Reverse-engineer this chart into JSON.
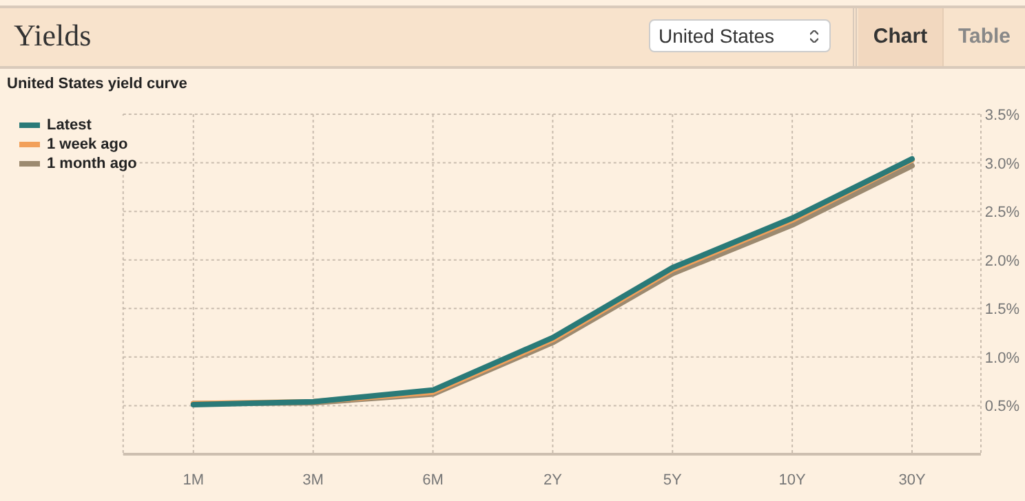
{
  "chart_data": {
    "type": "line",
    "title": "Yields",
    "subtitle": "United States yield curve",
    "annotations": [
      "United States",
      "Chart",
      "Table"
    ],
    "categories": [
      "1M",
      "3M",
      "6M",
      "2Y",
      "5Y",
      "10Y",
      "30Y"
    ],
    "series": [
      {
        "name": "Latest",
        "color": "#2a7a78",
        "values": [
          0.51,
          0.54,
          0.66,
          1.2,
          1.92,
          2.43,
          3.04
        ]
      },
      {
        "name": "1 week ago",
        "color": "#f2a05a",
        "values": [
          0.52,
          0.54,
          0.64,
          1.18,
          1.9,
          2.41,
          3.03
        ]
      },
      {
        "name": "1 month ago",
        "color": "#9c8a70",
        "values": [
          0.52,
          0.53,
          0.62,
          1.15,
          1.86,
          2.36,
          2.97
        ]
      }
    ],
    "ylim": [
      0,
      3.5
    ],
    "yticks": [
      {
        "value": 0.5,
        "label": "0.5%"
      },
      {
        "value": 1,
        "label": "1.0%"
      },
      {
        "value": 1.5,
        "label": "1.5%"
      },
      {
        "value": 2,
        "label": "2.0%"
      },
      {
        "value": 2.5,
        "label": "2.5%"
      },
      {
        "value": 3,
        "label": "3.0%"
      },
      {
        "value": 3.5,
        "label": "3.5%"
      }
    ],
    "grid": true,
    "legend": "top left",
    "marker": "none",
    "line_style": "solid"
  }
}
